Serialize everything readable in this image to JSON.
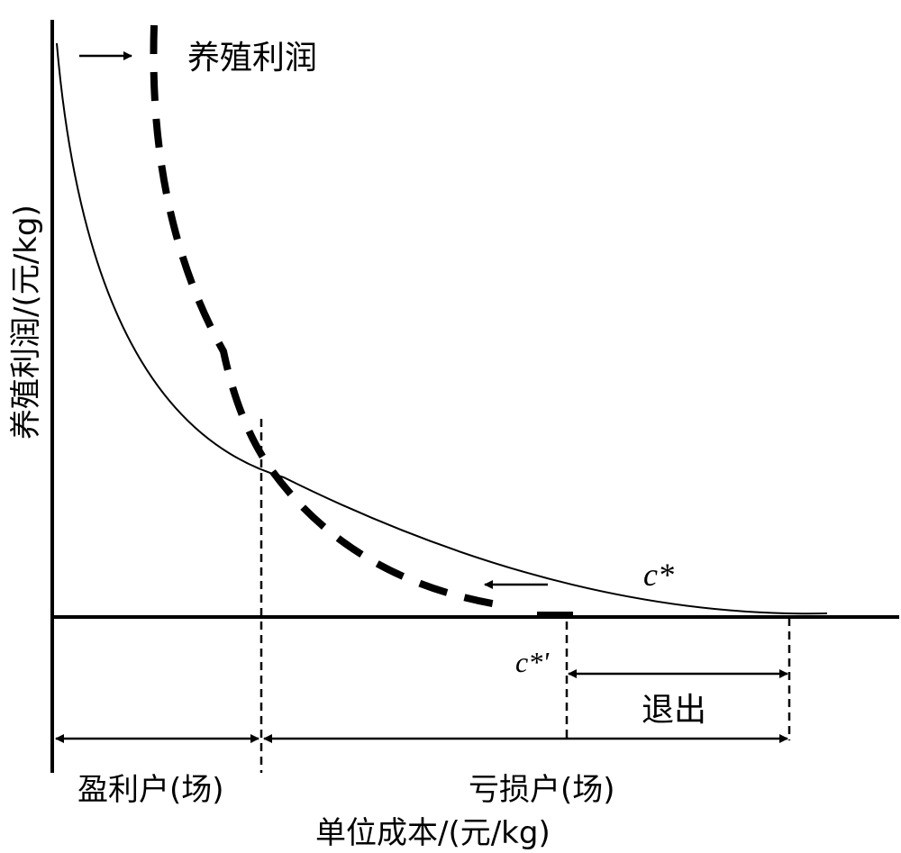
{
  "diagram": {
    "y_axis_label": "养殖利润/(元/kg)",
    "x_axis_label": "单位成本/(元/kg)",
    "legend_label": "养殖利润",
    "curve_label_original": "c*",
    "curve_label_shifted": "c*'",
    "region_exit_label": "退出",
    "region_profit_label": "盈利户(场)",
    "region_loss_label": "亏损户(场)",
    "colors": {
      "ink": "#000000",
      "background": "#ffffff"
    }
  }
}
